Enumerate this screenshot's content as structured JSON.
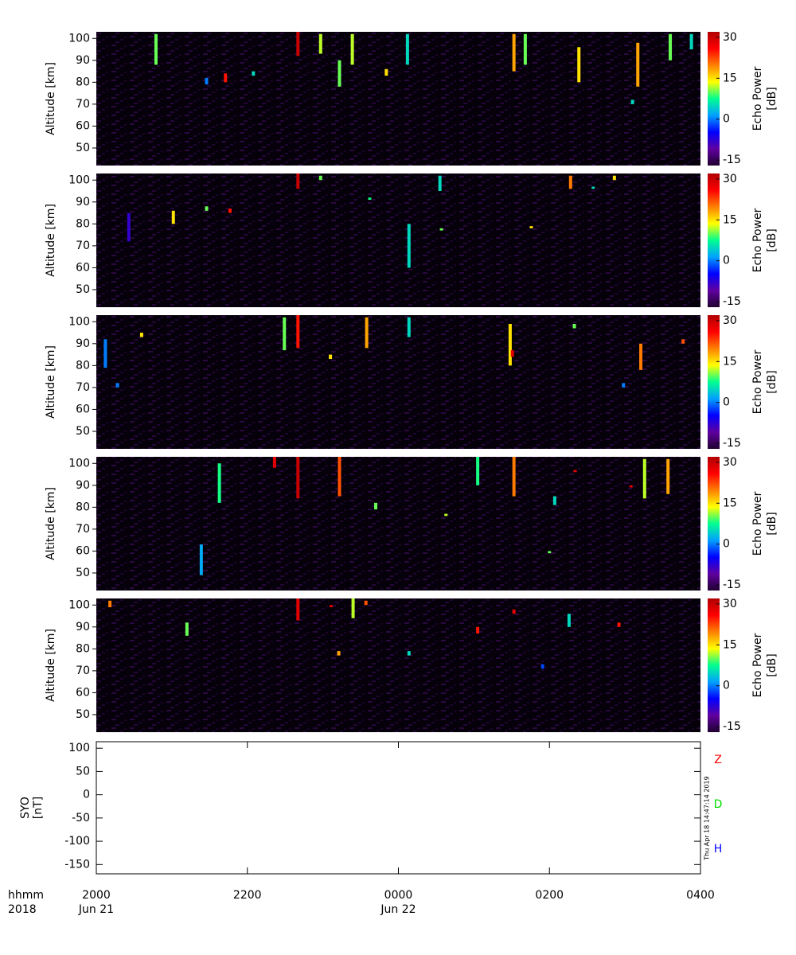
{
  "chart_data": [
    {
      "type": "heatmap",
      "y_label": "Altitude [km]",
      "xlim": [
        0,
        8
      ],
      "ylim": [
        42,
        103
      ],
      "yticks": [
        50,
        60,
        70,
        80,
        90,
        100
      ],
      "colorbar_label": [
        "Echo Power",
        "[dB]"
      ],
      "clim": [
        -17,
        32
      ],
      "cticks": [
        -15,
        0,
        15,
        30
      ],
      "colormap": [
        "#200030",
        "#6000a0",
        "#0000ff",
        "#00a0ff",
        "#00ff90",
        "#ffff00",
        "#ff8000",
        "#ff0000",
        "#b00000"
      ],
      "echoes": {
        "x": [
          0.79,
          1.71,
          2.08,
          2.67,
          2.97,
          3.22,
          3.39,
          3.84,
          4.12,
          5.53,
          5.68,
          6.39,
          7.17,
          7.1,
          7.6,
          7.88,
          1.46
        ],
        "alt_bottom": [
          88,
          80,
          83,
          92,
          93,
          78,
          88,
          83,
          88,
          85,
          88,
          80,
          78,
          70,
          90,
          95,
          79
        ],
        "alt_top": [
          102,
          84,
          85,
          103,
          102,
          90,
          102,
          86,
          102,
          102,
          102,
          96,
          98,
          72,
          102,
          102,
          82
        ],
        "values": [
          10,
          25,
          5,
          30,
          12,
          10,
          12,
          15,
          5,
          18,
          10,
          15,
          18,
          5,
          10,
          5,
          0
        ]
      }
    },
    {
      "type": "heatmap",
      "y_label": "Altitude [km]",
      "xlim": [
        0,
        8
      ],
      "ylim": [
        42,
        103
      ],
      "yticks": [
        50,
        60,
        70,
        80,
        90,
        100
      ],
      "colorbar_label": [
        "Echo Power",
        "[dB]"
      ],
      "clim": [
        -17,
        32
      ],
      "cticks": [
        -15,
        0,
        15,
        30
      ],
      "colormap": [
        "#200030",
        "#6000a0",
        "#0000ff",
        "#00a0ff",
        "#00ff90",
        "#ffff00",
        "#ff8000",
        "#ff0000",
        "#b00000"
      ],
      "echoes": {
        "x": [
          0.43,
          1.02,
          1.46,
          1.77,
          2.67,
          2.97,
          3.62,
          4.14,
          4.55,
          4.57,
          5.76,
          6.28,
          6.86,
          6.58
        ],
        "alt_bottom": [
          72,
          80,
          86,
          85,
          96,
          100,
          91,
          60,
          95,
          77,
          78,
          96,
          100,
          96
        ],
        "alt_top": [
          85,
          86,
          88,
          87,
          103,
          102,
          92,
          80,
          102,
          78,
          79,
          102,
          102,
          97
        ],
        "values": [
          -8,
          15,
          10,
          25,
          30,
          10,
          8,
          5,
          5,
          10,
          15,
          20,
          15,
          5
        ]
      }
    },
    {
      "type": "heatmap",
      "y_label": "Altitude [km]",
      "xlim": [
        0,
        8
      ],
      "ylim": [
        42,
        103
      ],
      "yticks": [
        50,
        60,
        70,
        80,
        90,
        100
      ],
      "colorbar_label": [
        "Echo Power",
        "[dB]"
      ],
      "clim": [
        -17,
        32
      ],
      "cticks": [
        -15,
        0,
        15,
        30
      ],
      "colormap": [
        "#200030",
        "#6000a0",
        "#0000ff",
        "#00a0ff",
        "#00ff90",
        "#ffff00",
        "#ff8000",
        "#ff0000",
        "#b00000"
      ],
      "echoes": {
        "x": [
          0.12,
          0.28,
          0.6,
          2.49,
          2.67,
          3.1,
          3.58,
          4.14,
          5.48,
          5.51,
          6.33,
          7.21,
          6.98,
          7.77
        ],
        "alt_bottom": [
          79,
          70,
          93,
          87,
          88,
          83,
          88,
          93,
          80,
          84,
          97,
          78,
          70,
          90
        ],
        "alt_top": [
          92,
          72,
          95,
          102,
          103,
          85,
          102,
          102,
          99,
          87,
          99,
          90,
          72,
          92
        ],
        "values": [
          0,
          0,
          15,
          10,
          25,
          15,
          18,
          5,
          15,
          28,
          10,
          20,
          0,
          22
        ]
      }
    },
    {
      "type": "heatmap",
      "y_label": "Altitude [km]",
      "xlim": [
        0,
        8
      ],
      "ylim": [
        42,
        103
      ],
      "yticks": [
        50,
        60,
        70,
        80,
        90,
        100
      ],
      "colorbar_label": [
        "Echo Power",
        "[dB]"
      ],
      "clim": [
        -17,
        32
      ],
      "cticks": [
        -15,
        0,
        15,
        30
      ],
      "colormap": [
        "#200030",
        "#6000a0",
        "#0000ff",
        "#00a0ff",
        "#00ff90",
        "#ffff00",
        "#ff8000",
        "#ff0000",
        "#b00000"
      ],
      "echoes": {
        "x": [
          1.39,
          1.63,
          2.36,
          2.67,
          3.22,
          3.7,
          4.63,
          5.05,
          5.53,
          6.07,
          6.34,
          7.08,
          7.26,
          7.57,
          6.0
        ],
        "alt_bottom": [
          49,
          82,
          98,
          84,
          85,
          79,
          76,
          90,
          85,
          81,
          96,
          89,
          84,
          86,
          59
        ],
        "alt_top": [
          63,
          100,
          103,
          103,
          103,
          82,
          77,
          103,
          103,
          85,
          97,
          90,
          102,
          102,
          60
        ],
        "values": [
          2,
          8,
          28,
          30,
          22,
          10,
          12,
          8,
          20,
          5,
          28,
          28,
          12,
          18,
          10
        ]
      }
    },
    {
      "type": "heatmap",
      "y_label": "Altitude [km]",
      "xlim": [
        0,
        8
      ],
      "ylim": [
        42,
        103
      ],
      "yticks": [
        50,
        60,
        70,
        80,
        90,
        100
      ],
      "colorbar_label": [
        "Echo Power",
        "[dB]"
      ],
      "clim": [
        -17,
        32
      ],
      "cticks": [
        -15,
        0,
        15,
        30
      ],
      "colormap": [
        "#200030",
        "#6000a0",
        "#0000ff",
        "#00a0ff",
        "#00ff90",
        "#ffff00",
        "#ff8000",
        "#ff0000",
        "#b00000"
      ],
      "echoes": {
        "x": [
          0.18,
          1.2,
          2.67,
          3.11,
          3.4,
          4.14,
          5.05,
          5.53,
          5.91,
          6.26,
          6.92,
          3.21,
          3.57
        ],
        "alt_bottom": [
          99,
          86,
          93,
          99,
          94,
          77,
          87,
          96,
          71,
          90,
          90,
          77,
          100
        ],
        "alt_top": [
          102,
          92,
          103,
          100,
          103,
          79,
          90,
          98,
          73,
          96,
          92,
          79,
          102
        ],
        "values": [
          20,
          10,
          28,
          28,
          12,
          5,
          25,
          28,
          -2,
          5,
          25,
          18,
          22
        ]
      }
    },
    {
      "type": "line",
      "y_label": [
        "SYO",
        "[nT]"
      ],
      "xlim": [
        0,
        8
      ],
      "ylim": [
        -170,
        114
      ],
      "yticks": [
        100,
        50,
        0,
        -50,
        -100,
        -150
      ],
      "xticks": [
        {
          "value": 0,
          "label": "2000"
        },
        {
          "value": 2,
          "label": "2200"
        },
        {
          "value": 4,
          "label": "0000"
        },
        {
          "value": 6,
          "label": "0200"
        },
        {
          "value": 8,
          "label": "0400"
        }
      ],
      "date_labels": [
        {
          "value": 0,
          "label": "Jun 21"
        },
        {
          "value": 4,
          "label": "Jun 22"
        }
      ],
      "x_label": "hhmm",
      "year_label": "2018",
      "timestamp": "Thu Apr 18 14:47:14 2019",
      "series": [
        {
          "name": "Z",
          "color": "#ff0000",
          "values": []
        },
        {
          "name": "D",
          "color": "#00e000",
          "values": []
        },
        {
          "name": "H",
          "color": "#0000ff",
          "values": []
        }
      ]
    }
  ]
}
